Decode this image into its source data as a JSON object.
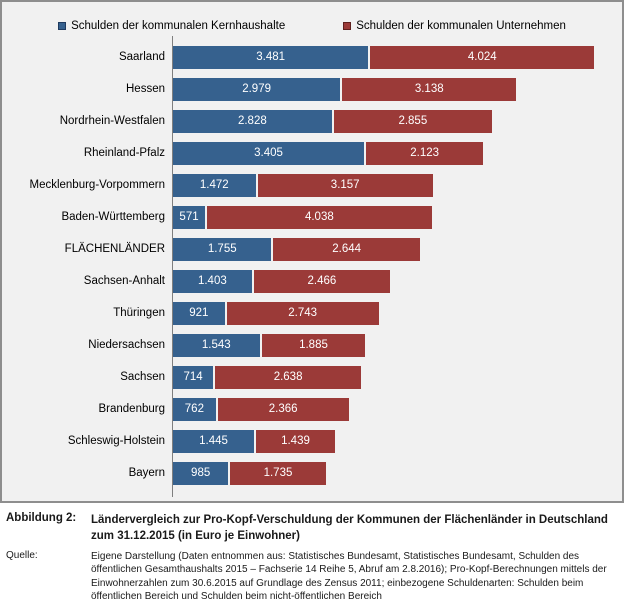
{
  "chart_data": {
    "type": "bar",
    "orientation": "horizontal",
    "stacked": true,
    "grid": false,
    "legend_position": "top",
    "xlim": [
      0,
      8000
    ],
    "value_label_color": "#ffffff",
    "background_color": "#f1f1f1",
    "categories": [
      "Saarland",
      "Hessen",
      "Nordrhein-Westfalen",
      "Rheinland-Pfalz",
      "Mecklenburg-Vorpommern",
      "Baden-Württemberg",
      "FLÄCHENLÄNDER",
      "Sachsen-Anhalt",
      "Thüringen",
      "Niedersachsen",
      "Sachsen",
      "Brandenburg",
      "Schleswig-Holstein",
      "Bayern"
    ],
    "series": [
      {
        "name": "Schulden der kommunalen  Kernhaushalte",
        "color": "#36618e",
        "border_color": "#1f3a5f",
        "values": [
          3481,
          2979,
          2828,
          3405,
          1472,
          571,
          1755,
          1403,
          921,
          1543,
          714,
          762,
          1445,
          985
        ],
        "labels": [
          "3.481",
          "2.979",
          "2.828",
          "3.405",
          "1.472",
          "571",
          "1.755",
          "1.403",
          "921",
          "1.543",
          "714",
          "762",
          "1.445",
          "985"
        ]
      },
      {
        "name": "Schulden der kommunalen  Unternehmen",
        "color": "#9b3a38",
        "border_color": "#5e1f1e",
        "values": [
          4024,
          3138,
          2855,
          2123,
          3157,
          4038,
          2644,
          2466,
          2743,
          1885,
          2638,
          2366,
          1439,
          1735
        ],
        "labels": [
          "4.024",
          "3.138",
          "2.855",
          "2.123",
          "3.157",
          "4.038",
          "2.644",
          "2.466",
          "2.743",
          "1.885",
          "2.638",
          "2.366",
          "1.439",
          "1.735"
        ]
      }
    ]
  },
  "caption": {
    "figure_label": "Abbildung 2:",
    "title": "Ländervergleich zur Pro-Kopf-Verschuldung der Kommunen der Flächenländer in Deutschland zum 31.12.2015 (in Euro je Einwohner)",
    "source_label": "Quelle:",
    "source_text": "Eigene Darstellung (Daten entnommen aus: Statistisches Bundesamt, Statistisches Bundesamt, Schulden des öffentlichen Gesamthaushalts 2015 – Fachserie 14 Reihe 5, Abruf am 2.8.2016);  Pro-Kopf-Berechnungen mittels der Einwohnerzahlen zum 30.6.2015 auf Grundlage des Zensus 2011; einbezogene Schuldenarten: Schulden beim öffentlichen Bereich und Schulden beim nicht-öffentlichen Bereich"
  }
}
